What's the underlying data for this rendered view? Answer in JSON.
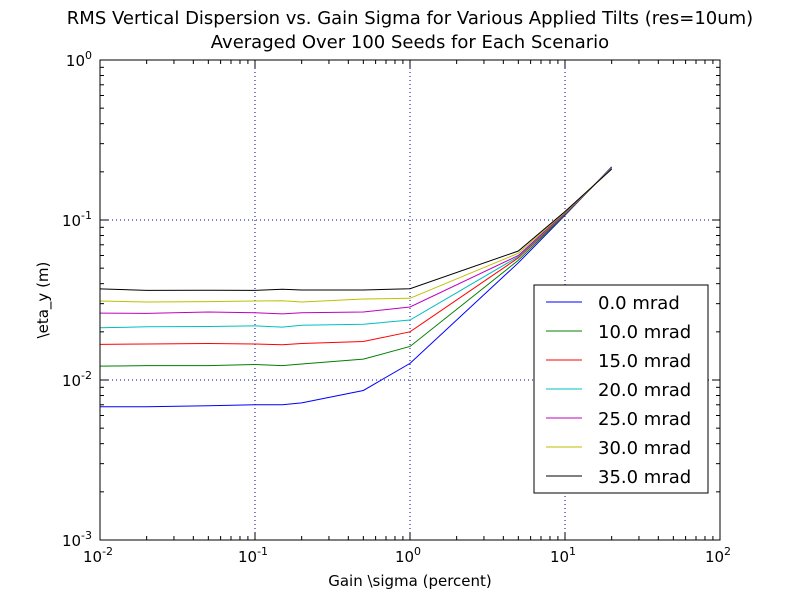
{
  "chart_data": {
    "type": "line",
    "title_line1": "RMS Vertical Dispersion vs. Gain Sigma for Various Applied Tilts (res=10um)",
    "title_line2": "Averaged Over 100 Seeds for Each Scenario",
    "xlabel": "Gain \\sigma (percent)",
    "ylabel": "\\eta_y (m)",
    "xscale": "log",
    "yscale": "log",
    "xlim": [
      0.01,
      100
    ],
    "ylim": [
      0.001,
      1
    ],
    "grid": true,
    "legend_position": "center-right",
    "xticks": [
      {
        "base": "10",
        "exp": "-2"
      },
      {
        "base": "10",
        "exp": "-1"
      },
      {
        "base": "10",
        "exp": "0"
      },
      {
        "base": "10",
        "exp": "1"
      },
      {
        "base": "10",
        "exp": "2"
      }
    ],
    "yticks": [
      {
        "base": "10",
        "exp": "-3"
      },
      {
        "base": "10",
        "exp": "-2"
      },
      {
        "base": "10",
        "exp": "-1"
      },
      {
        "base": "10",
        "exp": "0"
      }
    ],
    "x": [
      0.01,
      0.02,
      0.05,
      0.1,
      0.15,
      0.2,
      0.5,
      1.0,
      5.0,
      10.0,
      20.0
    ],
    "series": [
      {
        "name": "0.0 mrad",
        "color": "#0000ff",
        "values": [
          0.0068,
          0.0068,
          0.0069,
          0.007,
          0.007,
          0.0072,
          0.0086,
          0.0127,
          0.054,
          0.107,
          0.215
        ]
      },
      {
        "name": "10.0 mrad",
        "color": "#008000",
        "values": [
          0.0122,
          0.0123,
          0.0123,
          0.0125,
          0.0123,
          0.0126,
          0.0135,
          0.0162,
          0.056,
          0.108,
          0.213
        ]
      },
      {
        "name": "15.0 mrad",
        "color": "#ff0000",
        "values": [
          0.0167,
          0.0168,
          0.0169,
          0.0168,
          0.0166,
          0.0169,
          0.0174,
          0.02,
          0.058,
          0.109,
          0.212
        ]
      },
      {
        "name": "20.0 mrad",
        "color": "#00bfbf",
        "values": [
          0.0212,
          0.0215,
          0.0216,
          0.0218,
          0.0214,
          0.022,
          0.0223,
          0.0237,
          0.059,
          0.11,
          0.211
        ]
      },
      {
        "name": "25.0 mrad",
        "color": "#bf00bf",
        "values": [
          0.0262,
          0.0261,
          0.0266,
          0.0263,
          0.0259,
          0.0263,
          0.0266,
          0.0286,
          0.06,
          0.111,
          0.21
        ]
      },
      {
        "name": "30.0 mrad",
        "color": "#bfbf00",
        "values": [
          0.0312,
          0.0307,
          0.0309,
          0.0312,
          0.0313,
          0.0307,
          0.0321,
          0.0324,
          0.062,
          0.112,
          0.209
        ]
      },
      {
        "name": "35.0 mrad",
        "color": "#000000",
        "values": [
          0.0371,
          0.0363,
          0.0364,
          0.0363,
          0.0369,
          0.0365,
          0.0365,
          0.0372,
          0.064,
          0.113,
          0.208
        ]
      }
    ]
  }
}
